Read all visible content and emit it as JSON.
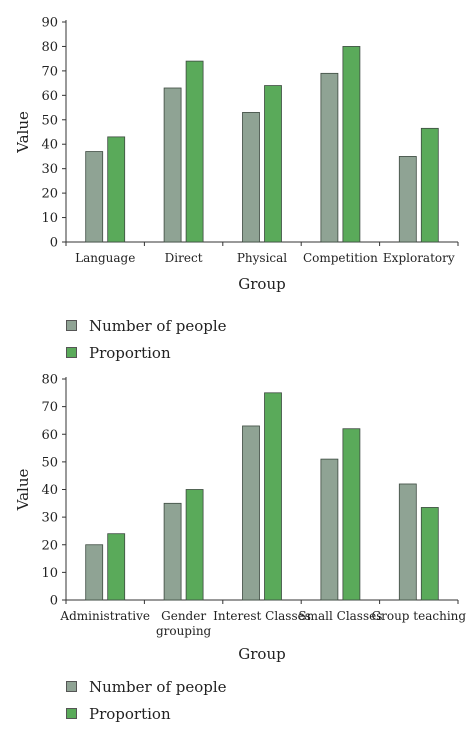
{
  "colors": {
    "people": "#8fa394",
    "proportion": "#5aaa5a",
    "axis": "#333333"
  },
  "chart_data": [
    {
      "type": "bar",
      "categories": [
        "Language",
        "Direct",
        "Physical",
        "Competition",
        "Exploratory"
      ],
      "series": [
        {
          "name": "Number of people",
          "values": [
            37,
            63,
            53,
            69,
            35
          ]
        },
        {
          "name": "Proportion",
          "values": [
            43,
            74,
            64,
            80,
            46.5
          ]
        }
      ],
      "xlabel": "Group",
      "ylabel": "Value",
      "ylim": [
        0,
        90
      ],
      "yticks": [
        0,
        10,
        20,
        30,
        40,
        50,
        60,
        70,
        80,
        90
      ],
      "legend": "bottom-left",
      "grid": false
    },
    {
      "type": "bar",
      "categories": [
        "Administrative",
        "Gender grouping",
        "Interest Classes",
        "Small Classes",
        "Group teaching"
      ],
      "series": [
        {
          "name": "Number of people",
          "values": [
            20,
            35,
            63,
            51,
            42
          ]
        },
        {
          "name": "Proportion",
          "values": [
            24,
            40,
            75,
            62,
            33.5
          ]
        }
      ],
      "xlabel": "Group",
      "ylabel": "Value",
      "ylim": [
        0,
        80
      ],
      "yticks": [
        0,
        10,
        20,
        30,
        40,
        50,
        60,
        70,
        80
      ],
      "legend": "bottom-left",
      "grid": false
    }
  ]
}
